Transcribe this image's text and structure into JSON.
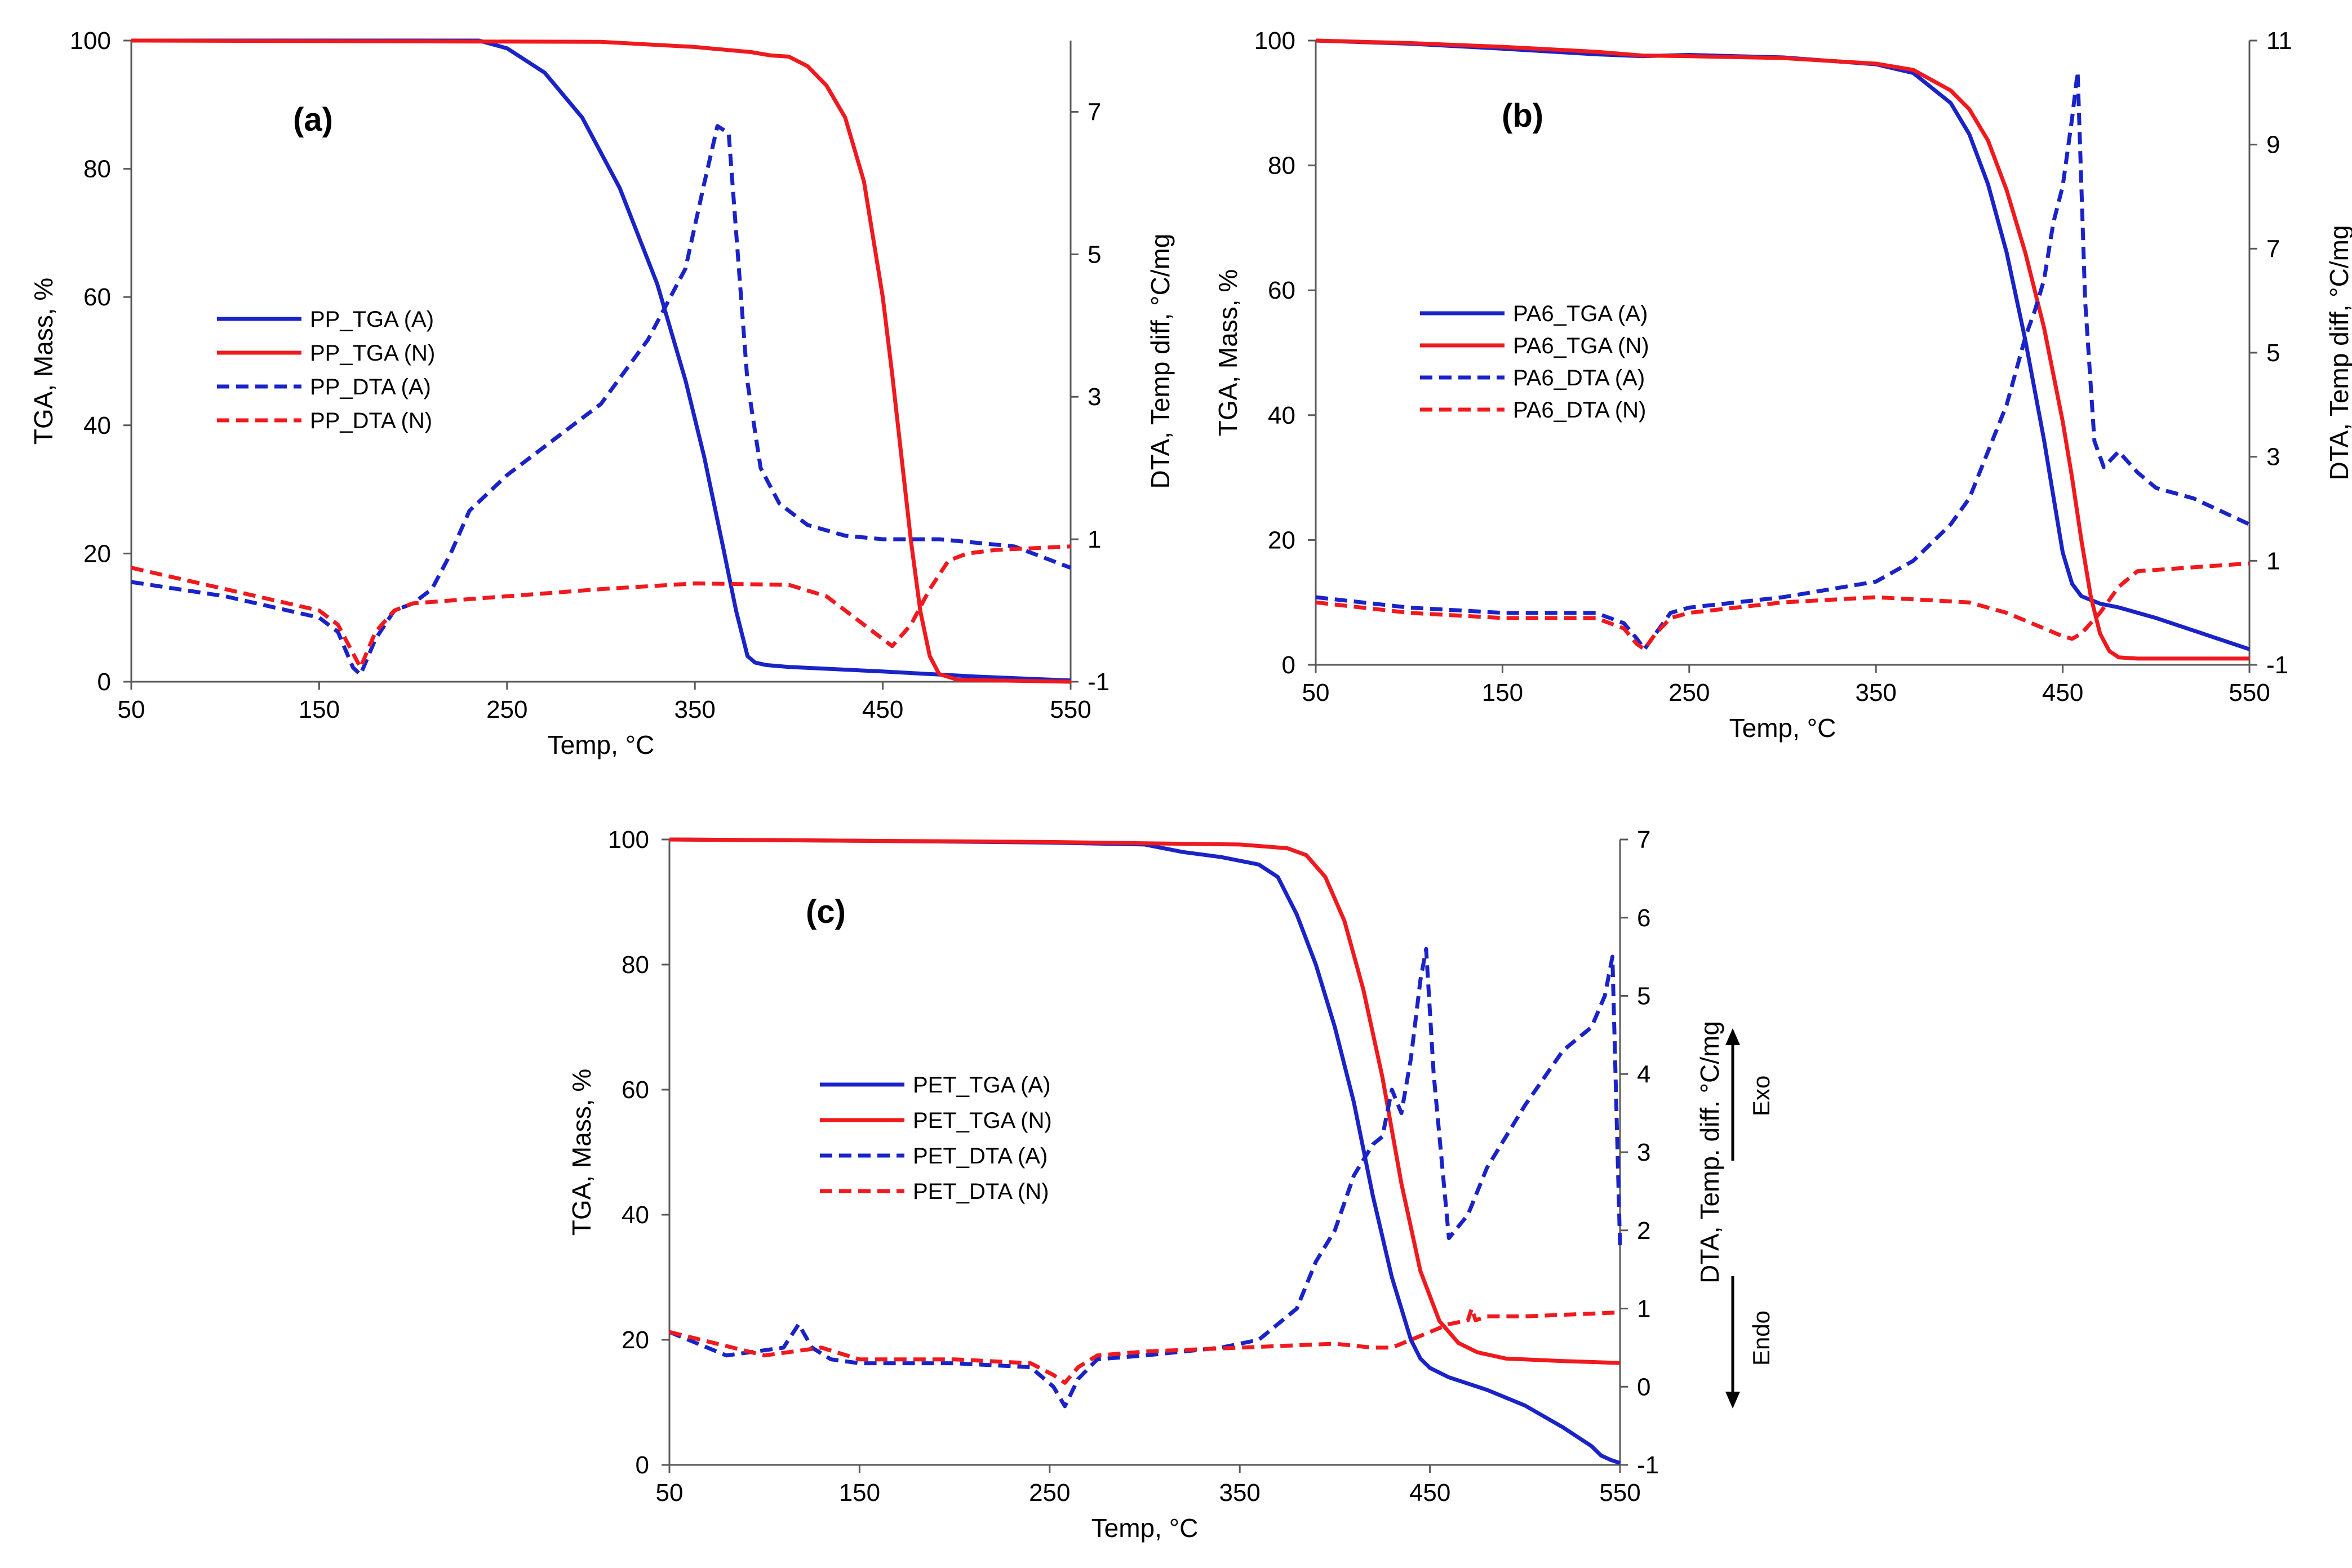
{
  "colors": {
    "blue": "#1a23c8",
    "red": "#f0191e",
    "axis": "#595959"
  },
  "chart_data": [
    {
      "type": "line",
      "panel": "(a)",
      "xlabel": "Temp, °C",
      "ylabel_left": "TGA, Mass, %",
      "ylabel_right": "DTA, Temp diff, °C/mg",
      "xlim": [
        50,
        550
      ],
      "ylim_left": [
        0,
        100
      ],
      "ylim_right": [
        -1,
        8
      ],
      "x_ticks": [
        "50",
        "150",
        "250",
        "350",
        "450",
        "550"
      ],
      "y_left_ticks": [
        "0",
        "20",
        "40",
        "60",
        "80",
        "100"
      ],
      "y_right_ticks": [
        "-1",
        "1",
        "3",
        "5",
        "7"
      ],
      "legend_position": "center-left",
      "series": [
        {
          "name": "PP_TGA (A)",
          "axis": "left",
          "color": "blue",
          "dash": "solid",
          "x": [
            50,
            150,
            200,
            235,
            250,
            270,
            290,
            310,
            330,
            345,
            355,
            365,
            372,
            378,
            382,
            388,
            400,
            450,
            500,
            550
          ],
          "y": [
            100,
            100,
            100,
            100,
            98.8,
            95,
            88,
            77,
            62,
            47,
            35,
            21,
            11,
            4,
            3,
            2.6,
            2.3,
            1.6,
            0.8,
            0.2
          ]
        },
        {
          "name": "PP_TGA (N)",
          "axis": "left",
          "color": "red",
          "dash": "solid",
          "x": [
            50,
            300,
            350,
            380,
            390,
            400,
            410,
            420,
            430,
            440,
            450,
            455,
            460,
            465,
            470,
            475,
            480,
            490,
            550
          ],
          "y": [
            100,
            99.8,
            99,
            98.2,
            97.7,
            97.5,
            96,
            93,
            88,
            78,
            60,
            48,
            35,
            22,
            11,
            4,
            1.2,
            0.3,
            0
          ]
        },
        {
          "name": "PP_DTA (A)",
          "axis": "right",
          "color": "blue",
          "dash": "dashed",
          "x": [
            50,
            100,
            150,
            160,
            168,
            172,
            180,
            190,
            200,
            210,
            220,
            230,
            250,
            275,
            300,
            325,
            345,
            355,
            362,
            368,
            372,
            378,
            385,
            395,
            410,
            430,
            450,
            480,
            500,
            520,
            550
          ],
          "y": [
            0.4,
            0.2,
            -0.1,
            -0.3,
            -0.8,
            -0.9,
            -0.4,
            0,
            0.1,
            0.3,
            0.8,
            1.4,
            1.9,
            2.4,
            2.9,
            3.8,
            4.8,
            6,
            6.8,
            6.7,
            5.3,
            3.2,
            2,
            1.5,
            1.2,
            1.05,
            1,
            1,
            0.95,
            0.9,
            0.6
          ]
        },
        {
          "name": "PP_DTA (N)",
          "axis": "right",
          "color": "red",
          "dash": "dashed",
          "x": [
            50,
            100,
            150,
            160,
            168,
            172,
            180,
            190,
            200,
            250,
            300,
            350,
            400,
            420,
            440,
            455,
            465,
            475,
            485,
            495,
            510,
            550
          ],
          "y": [
            0.6,
            0.3,
            0,
            -0.2,
            -0.6,
            -0.8,
            -0.3,
            0,
            0.1,
            0.2,
            0.3,
            0.38,
            0.36,
            0.2,
            -0.2,
            -0.5,
            -0.2,
            0.3,
            0.7,
            0.8,
            0.85,
            0.9
          ]
        }
      ]
    },
    {
      "type": "line",
      "panel": "(b)",
      "xlabel": "Temp, °C",
      "ylabel_left": "TGA, Mass, %",
      "ylabel_right": "DTA, Temp diff, °C/mg",
      "xlim": [
        50,
        550
      ],
      "ylim_left": [
        0,
        100
      ],
      "ylim_right": [
        -1,
        11
      ],
      "x_ticks": [
        "50",
        "150",
        "250",
        "350",
        "450",
        "550"
      ],
      "y_left_ticks": [
        "0",
        "20",
        "40",
        "60",
        "80",
        "100"
      ],
      "y_right_ticks": [
        "-1",
        "1",
        "3",
        "5",
        "7",
        "9",
        "11"
      ],
      "legend_position": "center-left",
      "series": [
        {
          "name": "PA6_TGA (A)",
          "axis": "left",
          "color": "blue",
          "dash": "solid",
          "x": [
            50,
            100,
            150,
            200,
            225,
            250,
            300,
            350,
            370,
            390,
            400,
            410,
            420,
            430,
            440,
            445,
            450,
            455,
            460,
            470,
            480,
            500,
            525,
            550
          ],
          "y": [
            100,
            99.5,
            98.7,
            97.8,
            97.5,
            97.7,
            97.3,
            96.2,
            94.8,
            90,
            85,
            77,
            66,
            52,
            36,
            27,
            18,
            13,
            11,
            9.8,
            9.2,
            7.5,
            5,
            2.5
          ]
        },
        {
          "name": "PA6_TGA (N)",
          "axis": "left",
          "color": "red",
          "dash": "solid",
          "x": [
            50,
            100,
            150,
            200,
            225,
            250,
            300,
            350,
            370,
            390,
            400,
            410,
            420,
            430,
            440,
            450,
            455,
            460,
            465,
            470,
            475,
            480,
            490,
            550
          ],
          "y": [
            100,
            99.6,
            99,
            98.2,
            97.6,
            97.5,
            97.2,
            96.3,
            95.3,
            92,
            89,
            84,
            76,
            66,
            54,
            39,
            30,
            20,
            11,
            5,
            2.2,
            1.2,
            1,
            1
          ]
        },
        {
          "name": "PA6_DTA (A)",
          "axis": "right",
          "color": "blue",
          "dash": "dashed",
          "x": [
            50,
            100,
            150,
            200,
            215,
            222,
            226,
            232,
            240,
            250,
            300,
            350,
            370,
            390,
            400,
            410,
            420,
            430,
            435,
            440,
            445,
            450,
            455,
            458,
            462,
            467,
            472,
            480,
            490,
            500,
            520,
            550
          ],
          "y": [
            0.3,
            0.1,
            0,
            0,
            -0.2,
            -0.5,
            -0.7,
            -0.4,
            0,
            0.1,
            0.3,
            0.6,
            1,
            1.7,
            2.2,
            3.1,
            4,
            5.3,
            5.8,
            6.4,
            7.5,
            8.2,
            9.5,
            10.4,
            6,
            3.3,
            2.8,
            3.1,
            2.7,
            2.4,
            2.2,
            1.7
          ]
        },
        {
          "name": "PA6_DTA (N)",
          "axis": "right",
          "color": "red",
          "dash": "dashed",
          "x": [
            50,
            100,
            150,
            200,
            215,
            222,
            226,
            232,
            240,
            250,
            300,
            350,
            400,
            420,
            440,
            450,
            455,
            460,
            470,
            480,
            490,
            550
          ],
          "y": [
            0.2,
            0,
            -0.1,
            -0.1,
            -0.3,
            -0.6,
            -0.7,
            -0.4,
            -0.1,
            0,
            0.2,
            0.3,
            0.2,
            0,
            -0.3,
            -0.45,
            -0.5,
            -0.4,
            0,
            0.5,
            0.8,
            0.95
          ]
        }
      ]
    },
    {
      "type": "line",
      "panel": "(c)",
      "xlabel": "Temp, °C",
      "ylabel_left": "TGA, Mass, %",
      "ylabel_right": "DTA, Temp. diff. °C/mg",
      "xlim": [
        50,
        550
      ],
      "ylim_left": [
        0,
        100
      ],
      "ylim_right": [
        -1,
        7
      ],
      "x_ticks": [
        "50",
        "150",
        "250",
        "350",
        "450",
        "550"
      ],
      "y_left_ticks": [
        "0",
        "20",
        "40",
        "60",
        "80",
        "100"
      ],
      "y_right_ticks": [
        "-1",
        "0",
        "1",
        "2",
        "3",
        "4",
        "5",
        "6",
        "7"
      ],
      "legend_position": "center-left",
      "annotations": {
        "exo": "Exo",
        "endo": "Endo"
      },
      "series": [
        {
          "name": "PET_TGA (A)",
          "axis": "left",
          "color": "blue",
          "dash": "solid",
          "x": [
            50,
            150,
            250,
            300,
            320,
            340,
            360,
            370,
            380,
            390,
            400,
            410,
            420,
            430,
            440,
            445,
            450,
            460,
            480,
            500,
            520,
            535,
            540,
            545,
            550
          ],
          "y": [
            100,
            99.8,
            99.5,
            99.2,
            98,
            97.2,
            96,
            94,
            88,
            80,
            70,
            58,
            43,
            30,
            20,
            17,
            15.5,
            14,
            12,
            9.5,
            6,
            3,
            1.5,
            0.8,
            0.3
          ]
        },
        {
          "name": "PET_TGA (N)",
          "axis": "left",
          "color": "red",
          "dash": "solid",
          "x": [
            50,
            150,
            250,
            300,
            350,
            375,
            385,
            395,
            405,
            415,
            425,
            435,
            445,
            455,
            465,
            475,
            490,
            520,
            550
          ],
          "y": [
            100,
            99.8,
            99.6,
            99.4,
            99.2,
            98.6,
            97.5,
            94,
            87,
            76,
            62,
            45,
            31,
            23,
            19.5,
            18,
            17,
            16.6,
            16.3
          ]
        },
        {
          "name": "PET_DTA (A)",
          "axis": "right",
          "color": "blue",
          "dash": "dashed",
          "x": [
            50,
            80,
            110,
            118,
            125,
            135,
            150,
            200,
            240,
            252,
            258,
            265,
            275,
            300,
            340,
            360,
            380,
            390,
            400,
            410,
            420,
            425,
            430,
            435,
            440,
            445,
            448,
            452,
            460,
            470,
            480,
            500,
            520,
            535,
            542,
            546,
            550
          ],
          "y": [
            0.7,
            0.4,
            0.5,
            0.8,
            0.5,
            0.35,
            0.3,
            0.3,
            0.25,
            0,
            -0.25,
            0.1,
            0.35,
            0.4,
            0.5,
            0.6,
            1,
            1.6,
            2,
            2.7,
            3.1,
            3.2,
            3.8,
            3.5,
            4.2,
            5.2,
            5.6,
            4,
            1.9,
            2.2,
            2.8,
            3.6,
            4.3,
            4.6,
            5,
            5.5,
            1.8
          ]
        },
        {
          "name": "PET_DTA (N)",
          "axis": "right",
          "color": "red",
          "dash": "dashed",
          "x": [
            50,
            100,
            130,
            150,
            200,
            240,
            252,
            258,
            265,
            275,
            300,
            350,
            400,
            420,
            430,
            440,
            450,
            460,
            470,
            472,
            474,
            480,
            500,
            550
          ],
          "y": [
            0.7,
            0.4,
            0.5,
            0.35,
            0.35,
            0.3,
            0.15,
            0.05,
            0.25,
            0.4,
            0.45,
            0.5,
            0.55,
            0.5,
            0.5,
            0.6,
            0.7,
            0.8,
            0.85,
            1.0,
            0.85,
            0.9,
            0.9,
            0.95
          ]
        }
      ]
    }
  ]
}
